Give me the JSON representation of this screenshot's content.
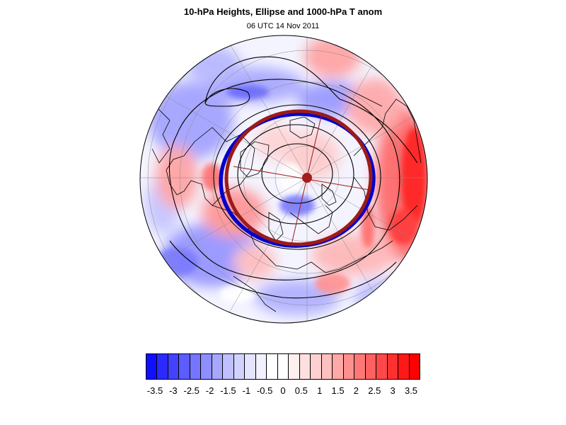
{
  "title": "10-hPa Heights, Ellipse and 1000-hPa T anom",
  "subtitle": "06 UTC 14 Nov 2011",
  "map": {
    "projection": "polar-stereographic-north",
    "field": "1000-hPa T anom",
    "contours": "10-hPa Heights",
    "vortex_ellipse": {
      "color": "#9b1b1b"
    },
    "vortex_edge": {
      "color": "#0000cc"
    },
    "colors": {
      "positive": "#ff0000",
      "negative": "#0000ff",
      "coast": "#000000",
      "grid": "#888888"
    }
  },
  "colorbar": {
    "tick_labels": [
      "-3.5",
      "-3",
      "-2.5",
      "-2",
      "-1.5",
      "-1",
      "-0.5",
      "0",
      "0.5",
      "1",
      "1.5",
      "2",
      "2.5",
      "3",
      "3.5"
    ],
    "colors": [
      "#1010ff",
      "#2a2aff",
      "#4343ff",
      "#5c5cff",
      "#7575ff",
      "#8e8eff",
      "#a7a7ff",
      "#c0c0ff",
      "#d2d2ff",
      "#e4e4ff",
      "#f2f2ff",
      "#ffffff",
      "#ffffff",
      "#fff0f0",
      "#ffe0e0",
      "#ffd0d0",
      "#ffc0c0",
      "#ffa8a8",
      "#ff9090",
      "#ff7878",
      "#ff6060",
      "#ff4848",
      "#ff3030",
      "#ff1818",
      "#ff0000"
    ]
  }
}
